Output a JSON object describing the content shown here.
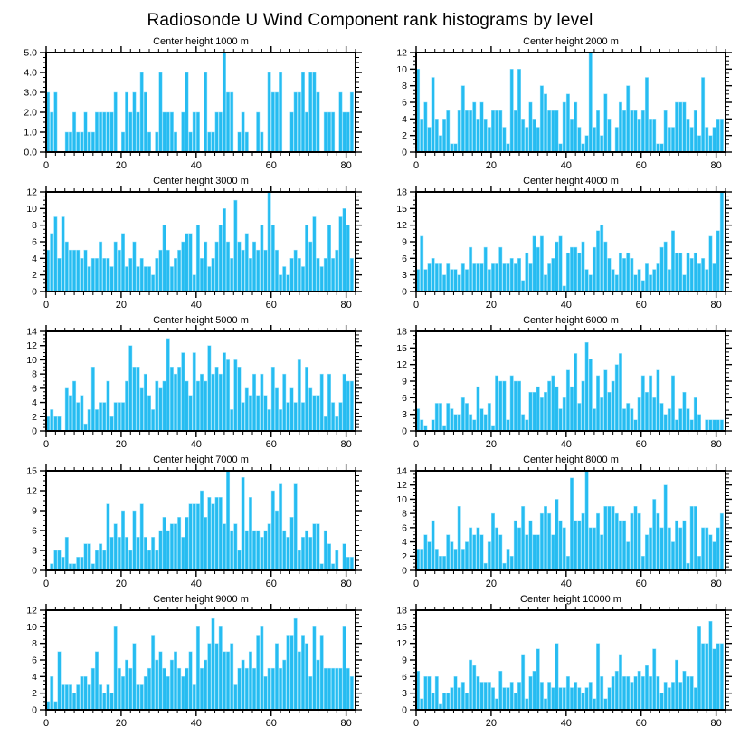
{
  "page_title": "Radiosonde U Wind Component rank histograms by level",
  "colors": {
    "bar_fill": "#26bcf1",
    "bar_edge": "#8fe0fb",
    "axis": "#000000"
  },
  "chart_data": {
    "type": "bar",
    "title": "Radiosonde U Wind Component rank histograms by level",
    "layout": {
      "rows": 5,
      "cols": 2,
      "grid": false,
      "legend": "none",
      "x_range": [
        0,
        82.5
      ],
      "x_major_ticks": [
        0,
        20,
        40,
        60,
        80
      ],
      "x_tick_labels": [
        "0",
        "20",
        "40",
        "60",
        "80"
      ],
      "x_minor_step": 2.5,
      "y_minors_per_major": 3,
      "xlabel": "",
      "ylabel": ""
    },
    "panels": [
      {
        "title": "Center height 1000 m",
        "ylim": [
          0,
          5
        ],
        "y_step": 1,
        "y_ticks": [
          "0.0",
          "1.0",
          "2.0",
          "3.0",
          "4.0",
          "5.0"
        ],
        "values": [
          3,
          2,
          3,
          0,
          0,
          1,
          1,
          2,
          1,
          1,
          2,
          1,
          1,
          2,
          2,
          2,
          2,
          2,
          3,
          0,
          1,
          3,
          2,
          3,
          2,
          4,
          3,
          1,
          0,
          1,
          4,
          2,
          2,
          2,
          1,
          0,
          2,
          4,
          1,
          2,
          2,
          0,
          4,
          1,
          1,
          2,
          2,
          5,
          3,
          3,
          0,
          1,
          2,
          1,
          0,
          0,
          2,
          1,
          0,
          4,
          3,
          3,
          4,
          0,
          0,
          2,
          3,
          3,
          4,
          2,
          4,
          4,
          3,
          0,
          2,
          2,
          2,
          0,
          3,
          2,
          2,
          3
        ]
      },
      {
        "title": "Center height 2000 m",
        "ylim": [
          0,
          12
        ],
        "y_step": 2,
        "y_ticks": [
          "0",
          "2",
          "4",
          "6",
          "8",
          "10",
          "12"
        ],
        "values": [
          10,
          4,
          6,
          3,
          9,
          4,
          2,
          4,
          5,
          1,
          1,
          5,
          8,
          5,
          5,
          6,
          4,
          6,
          4,
          3,
          5,
          5,
          5,
          3,
          1,
          10,
          5,
          10,
          4,
          3,
          6,
          4,
          3,
          8,
          7,
          5,
          5,
          5,
          1,
          6,
          7,
          4,
          6,
          3,
          1,
          2,
          12,
          3,
          5,
          2,
          7,
          4,
          0,
          3,
          6,
          5,
          8,
          5,
          5,
          4,
          5,
          9,
          4,
          4,
          1,
          1,
          5,
          3,
          3,
          6,
          6,
          6,
          4,
          3,
          5,
          2,
          9,
          3,
          2,
          3,
          4,
          4
        ]
      },
      {
        "title": "Center height 3000 m",
        "ylim": [
          0,
          12
        ],
        "y_step": 2,
        "y_ticks": [
          "0",
          "2",
          "4",
          "6",
          "8",
          "10",
          "12"
        ],
        "values": [
          5,
          7,
          9,
          4,
          9,
          6,
          5,
          5,
          5,
          4,
          5,
          3,
          4,
          4,
          6,
          4,
          4,
          3,
          6,
          5,
          7,
          3,
          4,
          6,
          3,
          4,
          3,
          3,
          2,
          4,
          5,
          8,
          5,
          3,
          4,
          5,
          6,
          7,
          7,
          2,
          8,
          4,
          6,
          3,
          4,
          6,
          8,
          10,
          6,
          4,
          11,
          6,
          5,
          7,
          4,
          6,
          5,
          8,
          5,
          12,
          8,
          5,
          2,
          3,
          2,
          4,
          5,
          4,
          3,
          8,
          6,
          9,
          4,
          3,
          4,
          8,
          4,
          5,
          9,
          10,
          8,
          4
        ]
      },
      {
        "title": "Center height 4000 m",
        "ylim": [
          0,
          18
        ],
        "y_step": 3,
        "y_ticks": [
          "0",
          "3",
          "6",
          "9",
          "12",
          "15",
          "18"
        ],
        "values": [
          4,
          10,
          4,
          5,
          6,
          5,
          5,
          3,
          5,
          4,
          4,
          3,
          5,
          4,
          8,
          5,
          5,
          5,
          8,
          4,
          5,
          5,
          8,
          5,
          5,
          6,
          5,
          6,
          2,
          7,
          5,
          10,
          8,
          10,
          3,
          5,
          6,
          9,
          10,
          1,
          7,
          8,
          8,
          7,
          9,
          4,
          3,
          8,
          11,
          12,
          9,
          6,
          4,
          3,
          7,
          6,
          7,
          6,
          3,
          4,
          2,
          5,
          3,
          4,
          5,
          8,
          9,
          4,
          11,
          7,
          7,
          3,
          7,
          6,
          7,
          5,
          6,
          4,
          10,
          5,
          11,
          18
        ]
      },
      {
        "title": "Center height 5000 m",
        "ylim": [
          0,
          14
        ],
        "y_step": 2,
        "y_ticks": [
          "0",
          "2",
          "4",
          "6",
          "8",
          "10",
          "12",
          "14"
        ],
        "values": [
          2,
          3,
          2,
          2,
          0,
          6,
          5,
          7,
          4,
          5,
          1,
          3,
          9,
          3,
          4,
          4,
          7,
          2,
          4,
          4,
          4,
          7,
          12,
          9,
          9,
          6,
          8,
          5,
          3,
          7,
          6,
          7,
          13,
          9,
          8,
          9,
          11,
          7,
          5,
          11,
          7,
          8,
          7,
          12,
          8,
          9,
          8,
          11,
          10,
          3,
          10,
          9,
          4,
          6,
          5,
          8,
          5,
          8,
          5,
          3,
          9,
          6,
          3,
          8,
          4,
          6,
          4,
          10,
          4,
          9,
          6,
          5,
          5,
          8,
          2,
          8,
          4,
          2,
          4,
          8,
          7,
          7
        ]
      },
      {
        "title": "Center height 6000 m",
        "ylim": [
          0,
          18
        ],
        "y_step": 3,
        "y_ticks": [
          "0",
          "3",
          "6",
          "9",
          "12",
          "15",
          "18"
        ],
        "values": [
          4,
          2,
          1,
          0,
          2,
          5,
          5,
          1,
          5,
          4,
          3,
          3,
          6,
          5,
          3,
          2,
          8,
          4,
          3,
          5,
          1,
          10,
          9,
          9,
          2,
          10,
          9,
          9,
          3,
          2,
          7,
          7,
          8,
          6,
          7,
          9,
          10,
          8,
          4,
          6,
          11,
          8,
          14,
          5,
          9,
          16,
          13,
          4,
          10,
          6,
          11,
          7,
          9,
          12,
          14,
          4,
          5,
          4,
          2,
          6,
          10,
          7,
          10,
          6,
          11,
          5,
          3,
          4,
          10,
          2,
          4,
          7,
          4,
          2,
          6,
          3,
          0,
          2,
          2,
          2,
          2,
          2
        ]
      },
      {
        "title": "Center height 7000 m",
        "ylim": [
          0,
          15
        ],
        "y_step": 3,
        "y_ticks": [
          "0",
          "3",
          "6",
          "9",
          "12",
          "15"
        ],
        "values": [
          0,
          1,
          3,
          3,
          2,
          5,
          1,
          1,
          2,
          2,
          4,
          4,
          1,
          3,
          4,
          3,
          10,
          5,
          7,
          5,
          9,
          5,
          3,
          9,
          5,
          10,
          5,
          3,
          5,
          3,
          6,
          8,
          6,
          7,
          7,
          8,
          5,
          8,
          10,
          10,
          10,
          12,
          8,
          11,
          10,
          11,
          11,
          7,
          15,
          6,
          7,
          3,
          14,
          6,
          11,
          6,
          6,
          5,
          6,
          7,
          12,
          9,
          13,
          6,
          5,
          8,
          13,
          3,
          5,
          6,
          5,
          7,
          7,
          1,
          6,
          4,
          1,
          3,
          0,
          4,
          2,
          2
        ]
      },
      {
        "title": "Center height 8000 m",
        "ylim": [
          0,
          14
        ],
        "y_step": 2,
        "y_ticks": [
          "0",
          "2",
          "4",
          "6",
          "8",
          "10",
          "12",
          "14"
        ],
        "values": [
          3,
          3,
          5,
          4,
          7,
          3,
          2,
          2,
          5,
          4,
          3,
          9,
          3,
          4,
          6,
          5,
          6,
          5,
          1,
          4,
          8,
          6,
          5,
          1,
          3,
          2,
          7,
          6,
          9,
          5,
          7,
          5,
          5,
          8,
          9,
          8,
          5,
          10,
          7,
          6,
          2,
          13,
          7,
          7,
          8,
          14,
          6,
          6,
          8,
          5,
          9,
          9,
          9,
          8,
          7,
          7,
          4,
          8,
          9,
          8,
          2,
          5,
          6,
          10,
          8,
          6,
          12,
          6,
          4,
          7,
          6,
          7,
          1,
          9,
          9,
          2,
          6,
          6,
          5,
          4,
          6,
          8
        ]
      },
      {
        "title": "Center height 9000 m",
        "ylim": [
          0,
          12
        ],
        "y_step": 2,
        "y_ticks": [
          "0",
          "2",
          "4",
          "6",
          "8",
          "10",
          "12"
        ],
        "values": [
          1,
          4,
          1,
          7,
          3,
          3,
          3,
          2,
          3,
          4,
          4,
          3,
          5,
          7,
          3,
          2,
          3,
          2,
          10,
          5,
          4,
          6,
          5,
          8,
          3,
          3,
          4,
          5,
          9,
          6,
          7,
          5,
          4,
          6,
          7,
          5,
          4,
          5,
          7,
          3,
          10,
          5,
          6,
          8,
          11,
          8,
          10,
          7,
          7,
          8,
          3,
          5,
          6,
          5,
          7,
          5,
          9,
          10,
          4,
          5,
          5,
          8,
          5,
          6,
          9,
          9,
          11,
          7,
          9,
          8,
          4,
          10,
          6,
          9,
          5,
          5,
          5,
          5,
          5,
          10,
          5,
          4
        ]
      },
      {
        "title": "Center height 10000 m",
        "ylim": [
          0,
          18
        ],
        "y_step": 3,
        "y_ticks": [
          "0",
          "3",
          "6",
          "9",
          "12",
          "15",
          "18"
        ],
        "values": [
          7,
          2,
          6,
          6,
          3,
          6,
          1,
          3,
          3,
          4,
          6,
          4,
          5,
          3,
          9,
          8,
          6,
          5,
          5,
          5,
          4,
          2,
          7,
          4,
          4,
          5,
          3,
          5,
          10,
          2,
          6,
          7,
          11,
          5,
          2,
          5,
          4,
          12,
          4,
          4,
          6,
          4,
          5,
          4,
          3,
          4,
          5,
          2,
          12,
          6,
          2,
          4,
          6,
          7,
          10,
          6,
          6,
          5,
          6,
          7,
          6,
          8,
          6,
          11,
          6,
          3,
          5,
          4,
          5,
          9,
          5,
          7,
          6,
          6,
          4,
          15,
          12,
          12,
          16,
          11,
          12,
          12
        ]
      }
    ]
  }
}
